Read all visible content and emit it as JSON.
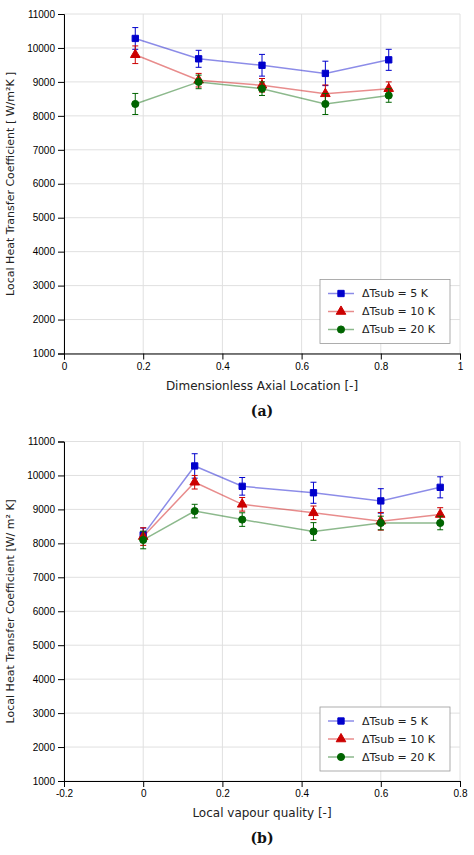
{
  "chart_data": [
    {
      "type": "line",
      "title": "(a)",
      "x_label": "Dimensionless Axial Location [-]",
      "y_label": "Local Heat Transfer Coefficient [ W/m²K ]",
      "xlim": [
        0,
        1
      ],
      "ylim": [
        1000,
        11000
      ],
      "xticks": [
        0,
        0.2,
        0.4,
        0.6,
        0.8,
        1
      ],
      "yticks": [
        1000,
        2000,
        3000,
        4000,
        5000,
        6000,
        7000,
        8000,
        9000,
        10000,
        11000
      ],
      "grid": true,
      "legend": "lower right",
      "x": [
        0.18,
        0.34,
        0.5,
        0.66,
        0.82
      ],
      "series": [
        {
          "name": "ΔTsub = 5 K",
          "color": "#0000CC",
          "marker": "square",
          "values": [
            10280,
            9680,
            9490,
            9250,
            9650
          ],
          "errors": [
            320,
            250,
            320,
            360,
            310
          ]
        },
        {
          "name": "ΔTsub = 10 K",
          "color": "#CC0000",
          "marker": "triangle",
          "values": [
            9800,
            9050,
            8900,
            8650,
            8800
          ],
          "errors": [
            260,
            200,
            200,
            260,
            200
          ]
        },
        {
          "name": "ΔTsub = 20 K",
          "color": "#006400",
          "marker": "circle",
          "values": [
            8350,
            9000,
            8800,
            8350,
            8600
          ],
          "errors": [
            310,
            200,
            200,
            310,
            200
          ]
        }
      ]
    },
    {
      "type": "line",
      "title": "(b)",
      "x_label": "Local vapour quality [-]",
      "y_label": "Local Heat Transfer Coefficient [W/ m² K]",
      "xlim": [
        -0.2,
        0.8
      ],
      "ylim": [
        1000,
        11000
      ],
      "xticks": [
        -0.2,
        0,
        0.2,
        0.4,
        0.6,
        0.8
      ],
      "yticks": [
        1000,
        2000,
        3000,
        4000,
        5000,
        6000,
        7000,
        8000,
        9000,
        10000,
        11000
      ],
      "grid": true,
      "legend": "lower right",
      "x": [
        0.0,
        0.13,
        0.25,
        0.43,
        0.6,
        0.75
      ],
      "series": [
        {
          "name": "ΔTsub = 5 K",
          "color": "#0000CC",
          "marker": "square",
          "values": [
            8250,
            10280,
            9680,
            9490,
            9250,
            9650
          ],
          "errors": [
            200,
            360,
            260,
            310,
            360,
            310
          ]
        },
        {
          "name": "ΔTsub = 10 K",
          "color": "#CC0000",
          "marker": "triangle",
          "values": [
            8200,
            9800,
            9150,
            8900,
            8650,
            8850
          ],
          "errors": [
            260,
            200,
            200,
            200,
            260,
            200
          ]
        },
        {
          "name": "ΔTsub = 20 K",
          "color": "#006400",
          "marker": "circle",
          "values": [
            8100,
            8950,
            8700,
            8350,
            8600,
            8600
          ],
          "errors": [
            260,
            200,
            200,
            260,
            200,
            200
          ]
        }
      ]
    }
  ]
}
